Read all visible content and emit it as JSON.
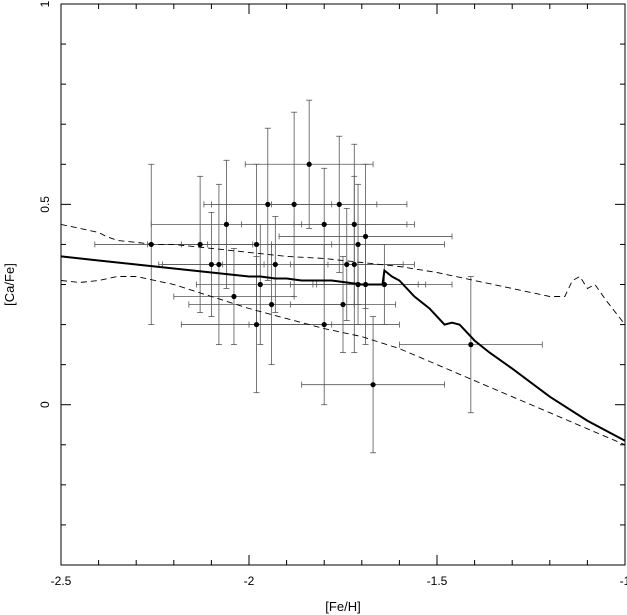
{
  "chart_data": {
    "type": "scatter",
    "title": "",
    "xlabel": "[Fe/H]",
    "ylabel": "[Ca/Fe]",
    "xlim": [
      -2.5,
      -1.0
    ],
    "ylim": [
      -0.4,
      1.0
    ],
    "x_ticks": [
      {
        "value": -2.5,
        "label": "-2.5"
      },
      {
        "value": -2.0,
        "label": "-2"
      },
      {
        "value": -1.5,
        "label": "-1.5"
      },
      {
        "value": -1.0,
        "label": "-1"
      }
    ],
    "y_ticks": [
      {
        "value": 0.0,
        "label": "0"
      },
      {
        "value": 0.5,
        "label": "0.5"
      },
      {
        "value": 1.0,
        "label": "1"
      }
    ],
    "grid": false,
    "points": [
      {
        "x": -2.26,
        "y": 0.4,
        "xerr": 0.15,
        "yerr": 0.2
      },
      {
        "x": -2.13,
        "y": 0.4,
        "xerr": 0.14,
        "yerr": 0.17
      },
      {
        "x": -2.1,
        "y": 0.35,
        "xerr": 0.14,
        "yerr": 0.13
      },
      {
        "x": -2.08,
        "y": 0.35,
        "xerr": 0.15,
        "yerr": 0.2
      },
      {
        "x": -2.06,
        "y": 0.45,
        "xerr": 0.2,
        "yerr": 0.16
      },
      {
        "x": -2.04,
        "y": 0.27,
        "xerr": 0.16,
        "yerr": 0.12
      },
      {
        "x": -1.98,
        "y": 0.4,
        "xerr": 0.2,
        "yerr": 0.2
      },
      {
        "x": -1.98,
        "y": 0.2,
        "xerr": 0.2,
        "yerr": 0.17
      },
      {
        "x": -1.97,
        "y": 0.3,
        "xerr": 0.17,
        "yerr": 0.15
      },
      {
        "x": -1.95,
        "y": 0.5,
        "xerr": 0.17,
        "yerr": 0.19
      },
      {
        "x": -1.94,
        "y": 0.25,
        "xerr": 0.22,
        "yerr": 0.15
      },
      {
        "x": -1.93,
        "y": 0.35,
        "xerr": 0.14,
        "yerr": 0.12
      },
      {
        "x": -1.88,
        "y": 0.5,
        "xerr": 0.22,
        "yerr": 0.23
      },
      {
        "x": -1.84,
        "y": 0.6,
        "xerr": 0.17,
        "yerr": 0.16
      },
      {
        "x": -1.8,
        "y": 0.45,
        "xerr": 0.22,
        "yerr": 0.14
      },
      {
        "x": -1.8,
        "y": 0.2,
        "xerr": 0.2,
        "yerr": 0.2
      },
      {
        "x": -1.76,
        "y": 0.5,
        "xerr": 0.18,
        "yerr": 0.17
      },
      {
        "x": -1.75,
        "y": 0.25,
        "xerr": 0.14,
        "yerr": 0.12
      },
      {
        "x": -1.74,
        "y": 0.35,
        "xerr": 0.15,
        "yerr": 0.14
      },
      {
        "x": -1.72,
        "y": 0.45,
        "xerr": 0.16,
        "yerr": 0.2
      },
      {
        "x": -1.72,
        "y": 0.35,
        "xerr": 0.16,
        "yerr": 0.22
      },
      {
        "x": -1.71,
        "y": 0.4,
        "xerr": 0.23,
        "yerr": 0.15
      },
      {
        "x": -1.71,
        "y": 0.3,
        "xerr": 0.18,
        "yerr": 0.1
      },
      {
        "x": -1.69,
        "y": 0.42,
        "xerr": 0.23,
        "yerr": 0.18
      },
      {
        "x": -1.69,
        "y": 0.3,
        "xerr": 0.14,
        "yerr": 0.15
      },
      {
        "x": -1.67,
        "y": 0.05,
        "xerr": 0.19,
        "yerr": 0.17
      },
      {
        "x": -1.64,
        "y": 0.3,
        "xerr": 0.18,
        "yerr": 0.1
      },
      {
        "x": -1.41,
        "y": 0.15,
        "xerr": 0.19,
        "yerr": 0.17
      }
    ],
    "series": [
      {
        "style": "solid",
        "x": [
          -2.5,
          -2.4,
          -2.3,
          -2.2,
          -2.1,
          -2.0,
          -1.97,
          -1.93,
          -1.9,
          -1.86,
          -1.82,
          -1.78,
          -1.74,
          -1.7,
          -1.66,
          -1.645,
          -1.64,
          -1.62,
          -1.6,
          -1.56,
          -1.52,
          -1.48,
          -1.46,
          -1.44,
          -1.4,
          -1.36,
          -1.3,
          -1.2,
          -1.1,
          -1.0
        ],
        "y": [
          0.37,
          0.36,
          0.35,
          0.34,
          0.33,
          0.32,
          0.32,
          0.315,
          0.315,
          0.31,
          0.31,
          0.31,
          0.305,
          0.3,
          0.3,
          0.3,
          0.335,
          0.32,
          0.31,
          0.27,
          0.24,
          0.2,
          0.205,
          0.2,
          0.16,
          0.13,
          0.09,
          0.02,
          -0.04,
          -0.09
        ]
      },
      {
        "style": "dashed",
        "x": [
          -2.5,
          -2.45,
          -2.4,
          -2.38,
          -2.35,
          -2.3,
          -2.25,
          -2.2,
          -2.1,
          -2.0,
          -1.9,
          -1.8,
          -1.7,
          -1.6,
          -1.5,
          -1.4,
          -1.3,
          -1.2,
          -1.16,
          -1.14,
          -1.12,
          -1.1,
          -1.08,
          -1.05,
          -1.0
        ],
        "y": [
          0.45,
          0.44,
          0.43,
          0.42,
          0.41,
          0.405,
          0.4,
          0.4,
          0.39,
          0.38,
          0.37,
          0.365,
          0.355,
          0.345,
          0.33,
          0.31,
          0.29,
          0.27,
          0.27,
          0.31,
          0.32,
          0.29,
          0.3,
          0.26,
          0.2
        ]
      },
      {
        "style": "dashed",
        "x": [
          -2.5,
          -2.45,
          -2.4,
          -2.35,
          -2.3,
          -2.2,
          -2.1,
          -2.0,
          -1.9,
          -1.8,
          -1.7,
          -1.6,
          -1.5,
          -1.4,
          -1.3,
          -1.2,
          -1.1,
          -1.0
        ],
        "y": [
          0.31,
          0.305,
          0.31,
          0.32,
          0.32,
          0.3,
          0.27,
          0.24,
          0.215,
          0.19,
          0.17,
          0.14,
          0.1,
          0.06,
          0.02,
          -0.02,
          -0.06,
          -0.1
        ]
      }
    ]
  }
}
